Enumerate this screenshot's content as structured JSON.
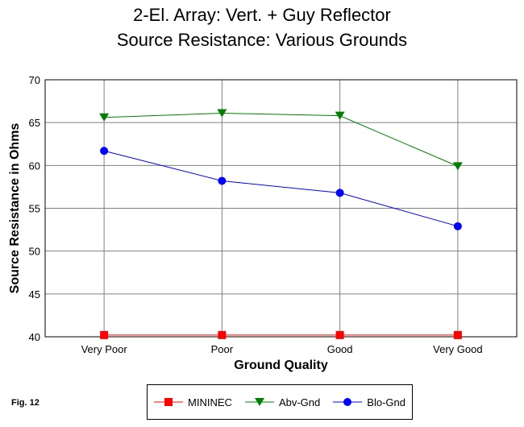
{
  "title_line1": "2-El. Array:  Vert. + Guy Reflector",
  "title_line2": "Source Resistance:  Various Grounds",
  "fig_label": "Fig. 12",
  "chart_data": {
    "type": "line",
    "xlabel": "Ground Quality",
    "ylabel": "Source Resistance in Ohms",
    "categories": [
      "Very Poor",
      "Poor",
      "Good",
      "Very Good"
    ],
    "ylim": [
      40,
      70
    ],
    "yticks": [
      40,
      45,
      50,
      55,
      60,
      65,
      70
    ],
    "grid": true,
    "legend_position": "bottom",
    "series": [
      {
        "name": "MININEC",
        "values": [
          40.2,
          40.2,
          40.2,
          40.2
        ],
        "color": "#ff0000",
        "marker": "square"
      },
      {
        "name": "Abv-Gnd",
        "values": [
          65.6,
          66.1,
          65.8,
          59.9
        ],
        "color": "#008000",
        "marker": "triangle-down"
      },
      {
        "name": "Blo-Gnd",
        "values": [
          61.7,
          58.2,
          56.8,
          52.9
        ],
        "color": "#0000ff",
        "marker": "circle"
      }
    ]
  }
}
